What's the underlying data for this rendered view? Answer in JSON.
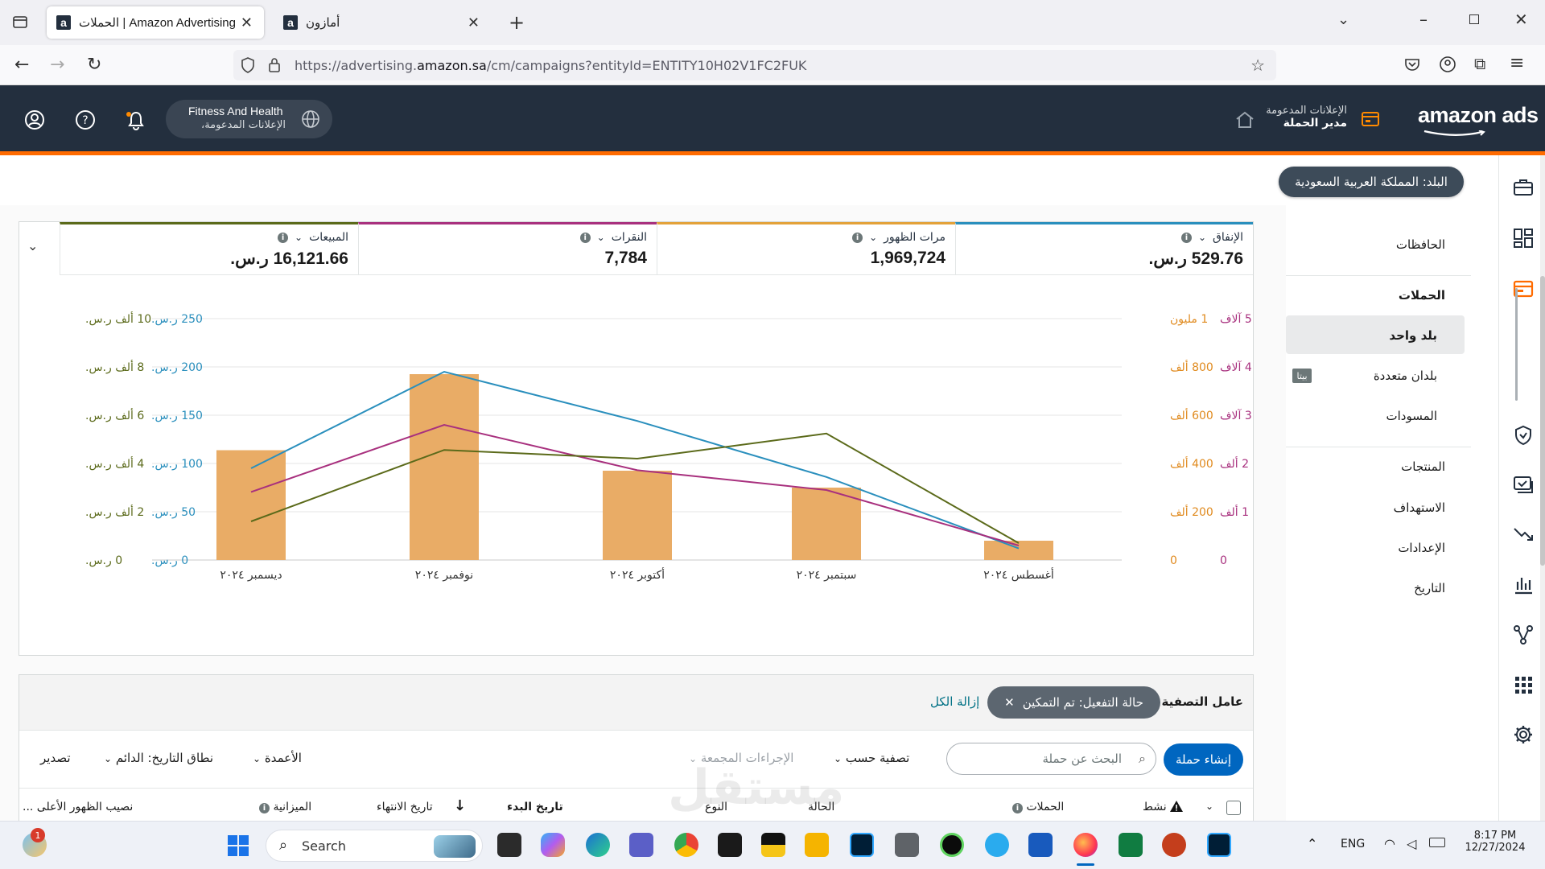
{
  "browser": {
    "tabs": [
      {
        "label": "الحملات | Amazon Advertising",
        "favicon": "a",
        "active": true
      },
      {
        "label": "أمازون",
        "favicon": "a",
        "active": false
      }
    ],
    "url_prefix": "https://advertising.",
    "url_domain": "amazon.sa",
    "url_path": "/cm/campaigns?entityId=ENTITY10H02V1FC2FUK"
  },
  "header": {
    "logo": "amazon ads",
    "product": "الإعلانات المدعومة",
    "section": "مدير الحملة",
    "account_name": "Fitness And Health",
    "account_sub": "الإعلانات المدعومة،"
  },
  "country_pill": "البلد: المملكة العربية السعودية",
  "subnav": {
    "items": [
      {
        "label": "الحافظات",
        "bold": false
      },
      {
        "label": "الحملات",
        "bold": true
      },
      {
        "label": "بلد واحد",
        "bold": true,
        "selected": true
      },
      {
        "label": "بلدان متعددة",
        "bold": false,
        "badge": "بيتا"
      },
      {
        "label": "المسودات",
        "bold": false
      },
      {
        "label": "المنتجات",
        "bold": false
      },
      {
        "label": "الاستهداف",
        "bold": false
      },
      {
        "label": "الإعدادات",
        "bold": false
      },
      {
        "label": "التاريخ",
        "bold": false
      }
    ]
  },
  "metrics": [
    {
      "label": "الإنفاق",
      "value": "529.76 ر.س.",
      "color": "#2a8fbd"
    },
    {
      "label": "مرات الظهور",
      "value": "1,969,724",
      "color": "#e3a23a"
    },
    {
      "label": "النقرات",
      "value": "7,784",
      "color": "#a8307e"
    },
    {
      "label": "المبيعات",
      "value": "16,121.66 ر.س.",
      "color": "#5b6a1a"
    }
  ],
  "chart_data": {
    "type": "bar",
    "categories": [
      "أغسطس ٢٠٢٤",
      "سبتمبر ٢٠٢٤",
      "أكتوبر ٢٠٢٤",
      "نوفمبر ٢٠٢٤",
      "ديسمبر ٢٠٢٤"
    ],
    "series": [
      {
        "name": "مرات الظهور",
        "kind": "bar",
        "axis": "impressions",
        "color": "#e9ac66",
        "values": [
          80000,
          300000,
          370000,
          770000,
          455000
        ]
      },
      {
        "name": "الإنفاق",
        "kind": "line",
        "axis": "spend",
        "color": "#2a8fbd",
        "values": [
          12,
          86,
          144,
          195,
          95
        ]
      },
      {
        "name": "النقرات",
        "kind": "line",
        "axis": "clicks",
        "color": "#a8307e",
        "values": [
          300,
          1450,
          1860,
          2800,
          1410
        ]
      },
      {
        "name": "المبيعات",
        "kind": "line",
        "axis": "sales",
        "color": "#5b6a1a",
        "values": [
          700,
          5240,
          4200,
          4560,
          1600
        ]
      }
    ],
    "axes": {
      "clicks": {
        "ticks": [
          "0",
          "1 ألف",
          "2 ألف",
          "3 آلاف",
          "4 آلاف",
          "5 آلاف"
        ],
        "range": [
          0,
          5000
        ],
        "color": "#a8307e"
      },
      "impressions": {
        "ticks": [
          "0",
          "200 ألف",
          "400 ألف",
          "600 ألف",
          "800 ألف",
          "1 مليون"
        ],
        "range": [
          0,
          1000000
        ],
        "color": "#e08a1e"
      },
      "spend": {
        "ticks": [
          "0 ر.س.",
          "50 ر.س.",
          "100 ر.س.",
          "150 ر.س.",
          "200 ر.س.",
          "250 ر.س."
        ],
        "range": [
          0,
          250
        ],
        "color": "#2a8fbd"
      },
      "sales": {
        "ticks": [
          "0 ر.س.",
          "2 ألف ر.س.",
          "4 ألف ر.س.",
          "6 ألف ر.س.",
          "8 ألف ر.س.",
          "10 ألف ر.س."
        ],
        "range": [
          0,
          10000
        ],
        "color": "#5b6a1a"
      }
    },
    "grid": true,
    "legend": "none"
  },
  "filters": {
    "title": "عامل التصفية",
    "chip": "حالة التفعيل: تم التمكين",
    "clear": "إزالة الكل"
  },
  "toolbar": {
    "create": "إنشاء حملة",
    "search_placeholder": "البحث عن حملة",
    "filter_by": "تصفية حسب",
    "bulk": "الإجراءات المجمعة",
    "columns": "الأعمدة",
    "date_range": "نطاق التاريخ: الدائم",
    "export": "تصدير"
  },
  "table": {
    "headers": [
      "نشط",
      "الحملات",
      "الحالة",
      "النوع",
      "تاريخ البدء",
      "تاريخ الانتهاء",
      "الميزانية",
      "نصيب الظهور الأعلى ..."
    ]
  },
  "watermark": "مستقل",
  "taskbar": {
    "search": "Search",
    "lang": "ENG",
    "time": "8:17 PM",
    "date": "12/27/2024",
    "notification_count": "1"
  }
}
